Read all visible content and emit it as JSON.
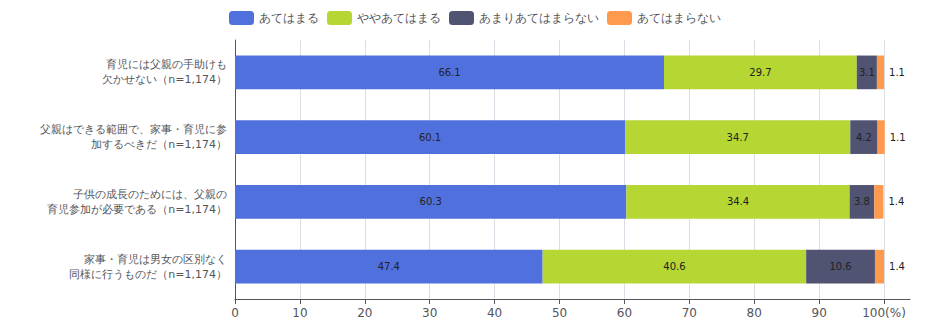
{
  "chart_data": {
    "type": "bar",
    "orientation": "horizontal",
    "stacked": true,
    "data_labels": true,
    "grid": true,
    "legend": "top",
    "categories": [
      "育児には父親の手助けも\n欠かせない（n=1,174）",
      "父親はできる範囲で、家事・育児に参\n加するべきだ（n=1,174）",
      "子供の成長のためには、父親の\n育児参加が必要である（n=1,174）",
      "家事・育児は男女の区別なく\n同様に行うものだ（n=1,174）"
    ],
    "series": [
      {
        "name": "あてはまる",
        "values": [
          66.1,
          60.1,
          60.3,
          47.4
        ]
      },
      {
        "name": "ややあてはまる",
        "values": [
          29.7,
          34.7,
          34.4,
          40.6
        ]
      },
      {
        "name": "あまりあてはまらない",
        "values": [
          3.1,
          4.2,
          3.8,
          10.6
        ]
      },
      {
        "name": "あてはまらない",
        "values": [
          1.1,
          1.1,
          1.4,
          1.4
        ]
      }
    ],
    "xlim": [
      0,
      104
    ],
    "xticks": [
      0,
      10,
      20,
      30,
      40,
      50,
      60,
      70,
      80,
      90,
      {
        "value": 100,
        "label": "100(%)"
      }
    ]
  }
}
